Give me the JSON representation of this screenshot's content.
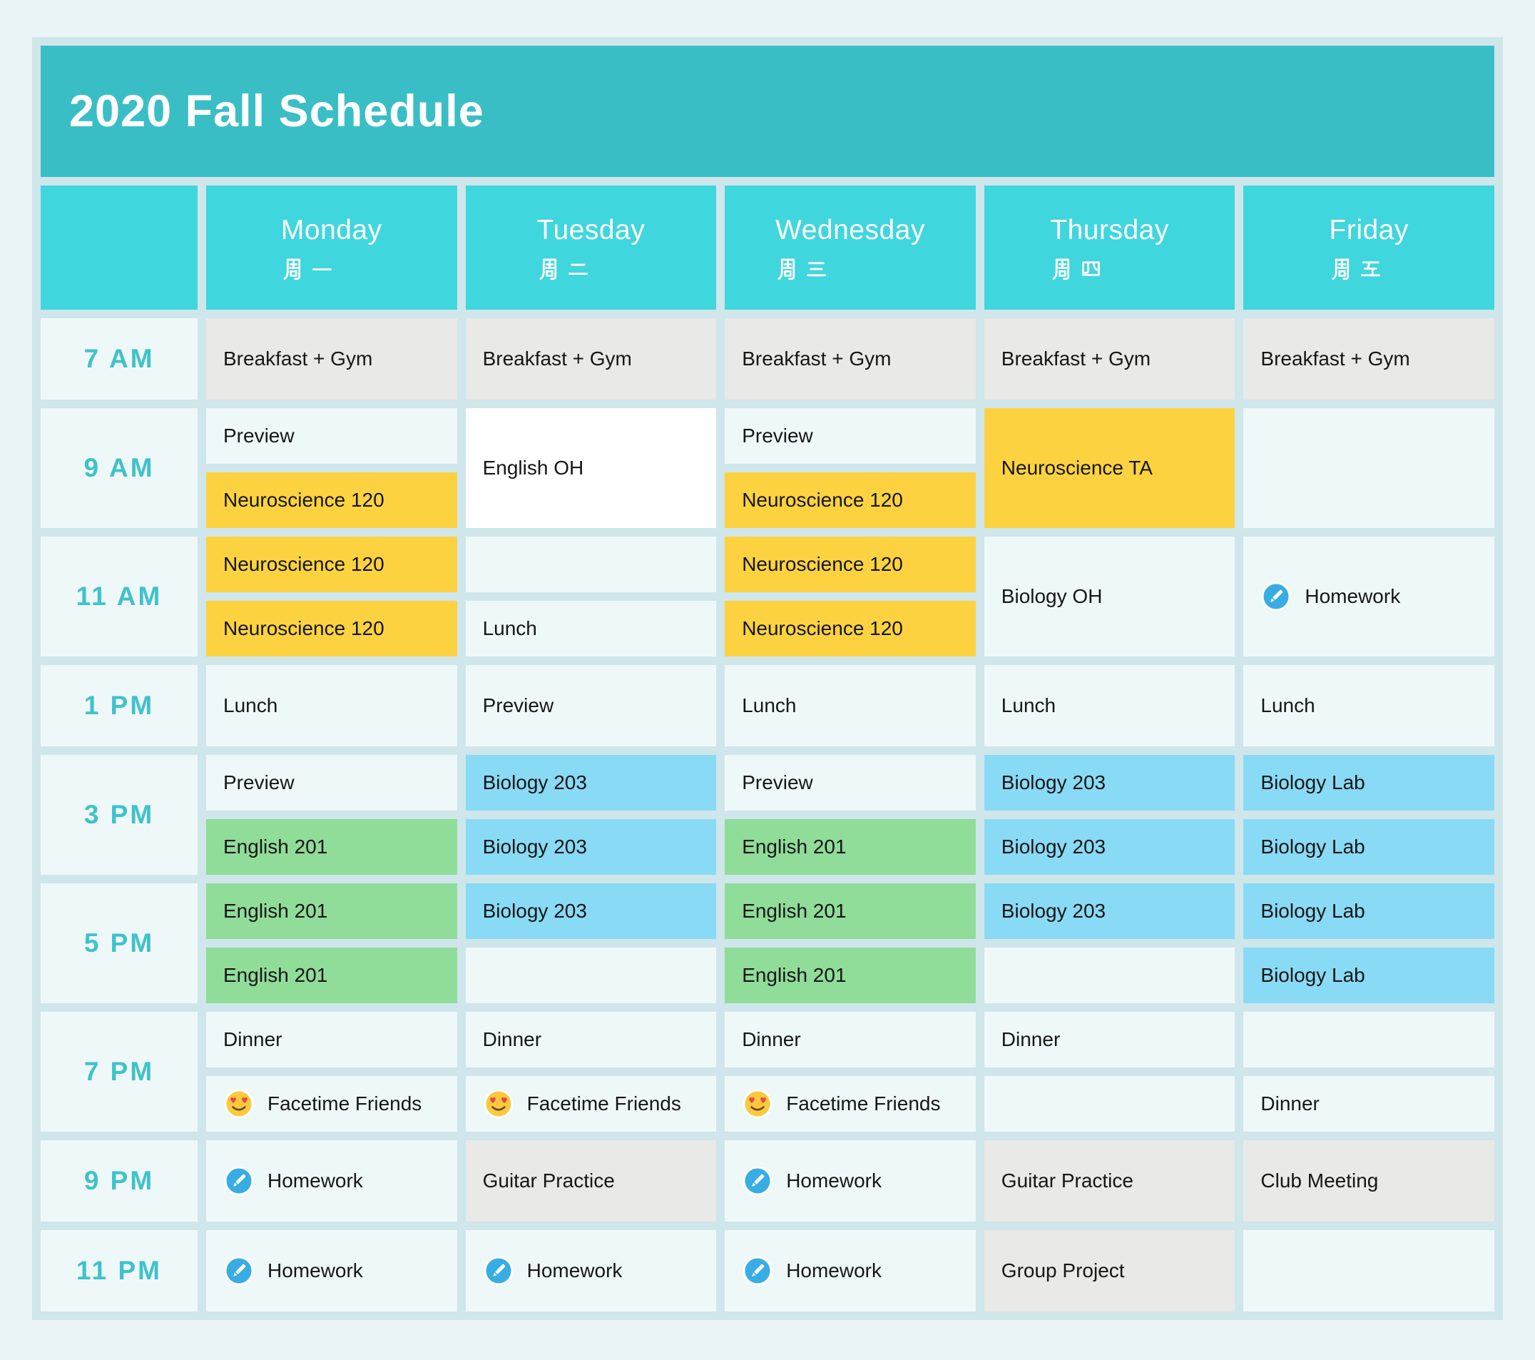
{
  "title": "2020 Fall Schedule",
  "palette": {
    "page_bg": "#eaf4f6",
    "frame": "#cfe6eb",
    "title_bar": "#3abec5",
    "day_header": "#40d6dd",
    "accent_text": "#3fc2ca",
    "text": "#161616",
    "cell_light": "#eff8f9",
    "cell_white": "#ffffff",
    "cell_gray": "#e9e9e8",
    "cell_yellow": "#fcd240",
    "cell_blue": "#89daf5",
    "cell_green": "#90dc99",
    "pencil_blue": "#38ade3",
    "emoji_face": "#fcc93d",
    "emoji_heart": "#e8464a"
  },
  "days": [
    {
      "en": "Monday",
      "zh": "周一"
    },
    {
      "en": "Tuesday",
      "zh": "周二"
    },
    {
      "en": "Wednesday",
      "zh": "周三"
    },
    {
      "en": "Thursday",
      "zh": "周四"
    },
    {
      "en": "Friday",
      "zh": "周五"
    }
  ],
  "rows": [
    {
      "time": "7 AM",
      "double": false,
      "cells": [
        {
          "slots": [
            {
              "text": "Breakfast + Gym",
              "color": "gray"
            }
          ]
        },
        {
          "slots": [
            {
              "text": "Breakfast + Gym",
              "color": "gray"
            }
          ]
        },
        {
          "slots": [
            {
              "text": "Breakfast + Gym",
              "color": "gray"
            }
          ]
        },
        {
          "slots": [
            {
              "text": "Breakfast + Gym",
              "color": "gray"
            }
          ]
        },
        {
          "slots": [
            {
              "text": "Breakfast + Gym",
              "color": "gray"
            }
          ]
        }
      ]
    },
    {
      "time": "9 AM",
      "double": true,
      "cells": [
        {
          "slots": [
            {
              "text": "Preview",
              "color": "light"
            },
            {
              "text": "Neuroscience 120",
              "color": "yellow"
            }
          ]
        },
        {
          "slots": [
            {
              "text": "English OH",
              "color": "white"
            }
          ]
        },
        {
          "slots": [
            {
              "text": "Preview",
              "color": "light"
            },
            {
              "text": "Neuroscience 120",
              "color": "yellow"
            }
          ]
        },
        {
          "slots": [
            {
              "text": "Neuroscience TA",
              "color": "yellow"
            }
          ]
        },
        {
          "slots": [
            {
              "text": "",
              "color": "light"
            }
          ]
        }
      ]
    },
    {
      "time": "11 AM",
      "double": true,
      "cells": [
        {
          "slots": [
            {
              "text": "Neuroscience 120",
              "color": "yellow"
            },
            {
              "text": "Neuroscience 120",
              "color": "yellow"
            }
          ]
        },
        {
          "slots": [
            {
              "text": "",
              "color": "light"
            },
            {
              "text": "Lunch",
              "color": "light"
            }
          ]
        },
        {
          "slots": [
            {
              "text": "Neuroscience 120",
              "color": "yellow"
            },
            {
              "text": "Neuroscience 120",
              "color": "yellow"
            }
          ]
        },
        {
          "slots": [
            {
              "text": "Biology OH",
              "color": "light"
            }
          ]
        },
        {
          "slots": [
            {
              "text": "Homework",
              "color": "light",
              "icon": "pencil"
            }
          ]
        }
      ]
    },
    {
      "time": "1 PM",
      "double": false,
      "cells": [
        {
          "slots": [
            {
              "text": "Lunch",
              "color": "light"
            }
          ]
        },
        {
          "slots": [
            {
              "text": "Preview",
              "color": "light"
            }
          ]
        },
        {
          "slots": [
            {
              "text": "Lunch",
              "color": "light"
            }
          ]
        },
        {
          "slots": [
            {
              "text": "Lunch",
              "color": "light"
            }
          ]
        },
        {
          "slots": [
            {
              "text": "Lunch",
              "color": "light"
            }
          ]
        }
      ]
    },
    {
      "time": "3 PM",
      "double": true,
      "cells": [
        {
          "slots": [
            {
              "text": "Preview",
              "color": "light"
            },
            {
              "text": "English 201",
              "color": "green"
            }
          ]
        },
        {
          "slots": [
            {
              "text": "Biology 203",
              "color": "blue"
            },
            {
              "text": "Biology 203",
              "color": "blue"
            }
          ]
        },
        {
          "slots": [
            {
              "text": "Preview",
              "color": "light"
            },
            {
              "text": "English 201",
              "color": "green"
            }
          ]
        },
        {
          "slots": [
            {
              "text": "Biology 203",
              "color": "blue"
            },
            {
              "text": "Biology 203",
              "color": "blue"
            }
          ]
        },
        {
          "slots": [
            {
              "text": "Biology Lab",
              "color": "blue"
            },
            {
              "text": "Biology Lab",
              "color": "blue"
            }
          ]
        }
      ]
    },
    {
      "time": "5 PM",
      "double": true,
      "cells": [
        {
          "slots": [
            {
              "text": "English 201",
              "color": "green"
            },
            {
              "text": "English 201",
              "color": "green"
            }
          ]
        },
        {
          "slots": [
            {
              "text": "Biology 203",
              "color": "blue"
            },
            {
              "text": "",
              "color": "light"
            }
          ]
        },
        {
          "slots": [
            {
              "text": "English 201",
              "color": "green"
            },
            {
              "text": "English 201",
              "color": "green"
            }
          ]
        },
        {
          "slots": [
            {
              "text": "Biology 203",
              "color": "blue"
            },
            {
              "text": "",
              "color": "light"
            }
          ]
        },
        {
          "slots": [
            {
              "text": "Biology Lab",
              "color": "blue"
            },
            {
              "text": "Biology Lab",
              "color": "blue"
            }
          ]
        }
      ]
    },
    {
      "time": "7 PM",
      "double": true,
      "cells": [
        {
          "slots": [
            {
              "text": "Dinner",
              "color": "light"
            },
            {
              "text": "Facetime Friends",
              "color": "light",
              "icon": "heart-eyes"
            }
          ]
        },
        {
          "slots": [
            {
              "text": "Dinner",
              "color": "light"
            },
            {
              "text": "Facetime Friends",
              "color": "light",
              "icon": "heart-eyes"
            }
          ]
        },
        {
          "slots": [
            {
              "text": "Dinner",
              "color": "light"
            },
            {
              "text": "Facetime Friends",
              "color": "light",
              "icon": "heart-eyes"
            }
          ]
        },
        {
          "slots": [
            {
              "text": "Dinner",
              "color": "light"
            },
            {
              "text": "",
              "color": "light"
            }
          ]
        },
        {
          "slots": [
            {
              "text": "",
              "color": "light"
            },
            {
              "text": "Dinner",
              "color": "light"
            }
          ]
        }
      ]
    },
    {
      "time": "9 PM",
      "double": false,
      "cells": [
        {
          "slots": [
            {
              "text": "Homework",
              "color": "light",
              "icon": "pencil"
            }
          ]
        },
        {
          "slots": [
            {
              "text": "Guitar Practice",
              "color": "gray"
            }
          ]
        },
        {
          "slots": [
            {
              "text": "Homework",
              "color": "light",
              "icon": "pencil"
            }
          ]
        },
        {
          "slots": [
            {
              "text": "Guitar Practice",
              "color": "gray"
            }
          ]
        },
        {
          "slots": [
            {
              "text": "Club Meeting",
              "color": "gray"
            }
          ]
        }
      ]
    },
    {
      "time": "11 PM",
      "double": false,
      "cells": [
        {
          "slots": [
            {
              "text": "Homework",
              "color": "light",
              "icon": "pencil"
            }
          ]
        },
        {
          "slots": [
            {
              "text": "Homework",
              "color": "light",
              "icon": "pencil"
            }
          ]
        },
        {
          "slots": [
            {
              "text": "Homework",
              "color": "light",
              "icon": "pencil"
            }
          ]
        },
        {
          "slots": [
            {
              "text": "Group Project",
              "color": "gray"
            }
          ]
        },
        {
          "slots": [
            {
              "text": "",
              "color": "light"
            }
          ]
        }
      ]
    }
  ]
}
